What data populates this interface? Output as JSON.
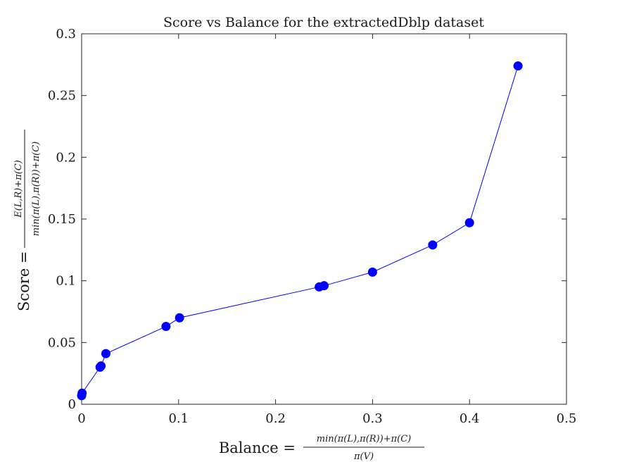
{
  "chart_data": {
    "type": "line",
    "title": "Score vs Balance for the extractedDblp dataset",
    "xlabel": {
      "text": "Balance =",
      "numerator": "min(π(L),π(R))+π(C)",
      "denominator": "π(V)"
    },
    "ylabel": {
      "text": "Score =",
      "numerator": "E(L,R)+π(C)",
      "denominator": "min(π(L),π(R))+π(C)"
    },
    "xlim": [
      0,
      0.5
    ],
    "ylim": [
      0,
      0.3
    ],
    "xticks": [
      "0",
      "0.1",
      "0.2",
      "0.3",
      "0.4",
      "0.5"
    ],
    "yticks": [
      "0",
      "0.05",
      "0.1",
      "0.15",
      "0.2",
      "0.25",
      "0.3"
    ],
    "grid": false,
    "color": "#0000ff",
    "marker": "circle",
    "series": [
      {
        "x": [
          0.0,
          0.0005,
          0.019,
          0.02,
          0.025,
          0.087,
          0.101,
          0.245,
          0.25,
          0.3,
          0.362,
          0.4,
          0.45
        ],
        "y": [
          0.007,
          0.009,
          0.03,
          0.031,
          0.041,
          0.063,
          0.07,
          0.095,
          0.096,
          0.107,
          0.129,
          0.147,
          0.274
        ]
      }
    ]
  }
}
